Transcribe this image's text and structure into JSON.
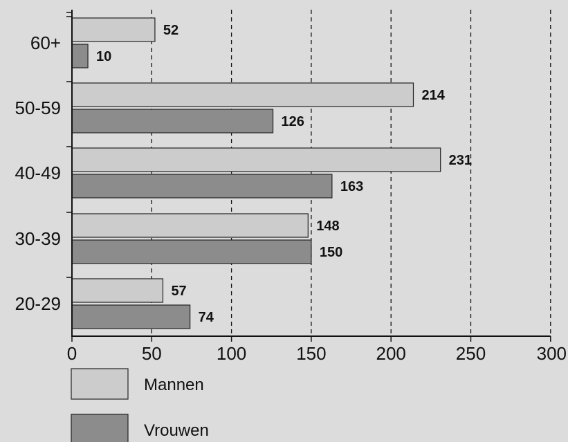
{
  "chart_data": {
    "type": "bar",
    "orientation": "horizontal",
    "categories": [
      "60+",
      "50-59",
      "40-49",
      "30-39",
      "20-29"
    ],
    "series": [
      {
        "name": "Mannen",
        "values": [
          52,
          214,
          231,
          148,
          57
        ],
        "color": "#cccccc"
      },
      {
        "name": "Vrouwen",
        "values": [
          10,
          126,
          163,
          150,
          74
        ],
        "color": "#8c8c8c"
      }
    ],
    "xlim": [
      0,
      300
    ],
    "xticks": [
      0,
      50,
      100,
      150,
      200,
      250,
      300
    ],
    "grid": "vertical-dashed",
    "legend_position": "bottom-left"
  }
}
